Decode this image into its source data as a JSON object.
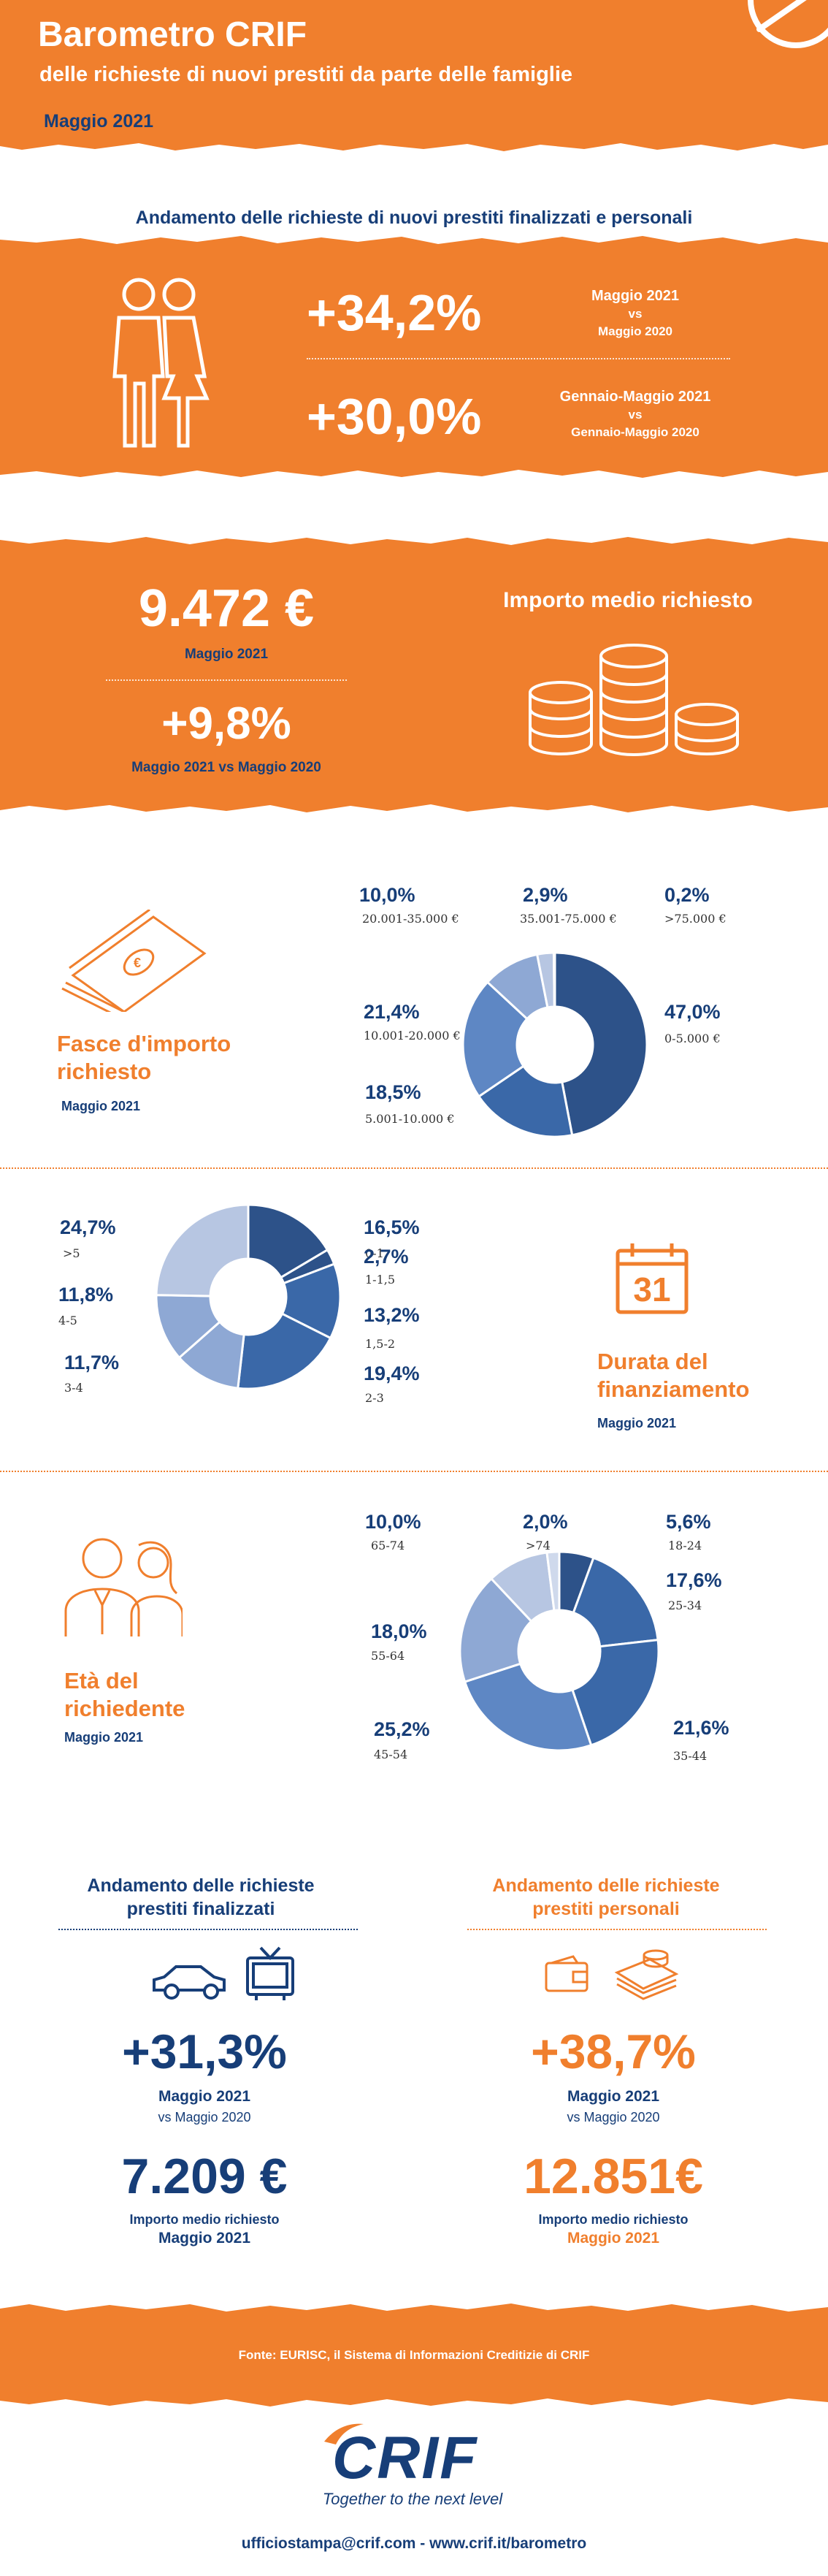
{
  "colors": {
    "orange": "#f07f2d",
    "navy": "#173e78",
    "donut": [
      "#2d5289",
      "#3a68a8",
      "#5e87c4",
      "#8ea8d4",
      "#b7c6e2",
      "#cfd9ec",
      "#e3e9f4"
    ]
  },
  "header": {
    "title": "Barometro CRIF",
    "subtitle": "delle richieste di nuovi prestiti da parte delle famiglie",
    "date": "Maggio 2021"
  },
  "trend": {
    "heading": "Andamento delle richieste di nuovi prestiti finalizzati e personali",
    "stat1": {
      "value": "+34,2%",
      "label_top": "Maggio 2021",
      "label_vs": "vs",
      "label_bottom": "Maggio 2020"
    },
    "stat2": {
      "value": "+30,0%",
      "label_top": "Gennaio-Maggio 2021",
      "label_vs": "vs",
      "label_bottom": "Gennaio-Maggio 2020"
    }
  },
  "amount": {
    "value": "9.472 €",
    "value_label": "Maggio 2021",
    "change": "+9,8%",
    "change_label": "Maggio 2021 vs Maggio 2020",
    "title": "Importo medio richiesto"
  },
  "fasce": {
    "title": "Fasce d'importo richiesto",
    "date": "Maggio 2021",
    "chart_data": {
      "type": "pie",
      "hole": true,
      "slices": [
        {
          "pct": "47,0%",
          "range": "0-5.000 €",
          "value": 47.0
        },
        {
          "pct": "18,5%",
          "range": "5.001-10.000  €",
          "value": 18.5
        },
        {
          "pct": "21,4%",
          "range": "10.001-20.000 €",
          "value": 21.4
        },
        {
          "pct": "10,0%",
          "range": "20.001-35.000 €",
          "value": 10.0
        },
        {
          "pct": "2,9%",
          "range": "35.001-75.000 €",
          "value": 2.9
        },
        {
          "pct": "0,2%",
          "range": ">75.000 €",
          "value": 0.2
        }
      ]
    }
  },
  "durata": {
    "title": "Durata del finanziamento",
    "date": "Maggio 2021",
    "calendar_number": "31",
    "chart_data": {
      "type": "pie",
      "hole": true,
      "slices": [
        {
          "pct": "16,5%",
          "range": "0-1",
          "value": 16.5
        },
        {
          "pct": "2,7%",
          "range": "1-1,5",
          "value": 2.7
        },
        {
          "pct": "13,2%",
          "range": "1,5-2",
          "value": 13.2
        },
        {
          "pct": "19,4%",
          "range": "2-3",
          "value": 19.4
        },
        {
          "pct": "11,7%",
          "range": "3-4",
          "value": 11.7
        },
        {
          "pct": "11,8%",
          "range": "4-5",
          "value": 11.8
        },
        {
          "pct": "24,7%",
          "range": ">5",
          "value": 24.7
        }
      ]
    }
  },
  "eta": {
    "title": "Età del richiedente",
    "date": "Maggio 2021",
    "chart_data": {
      "type": "pie",
      "hole": true,
      "slices": [
        {
          "pct": "5,6%",
          "range": "18-24",
          "value": 5.6
        },
        {
          "pct": "17,6%",
          "range": "25-34",
          "value": 17.6
        },
        {
          "pct": "21,6%",
          "range": "35-44",
          "value": 21.6
        },
        {
          "pct": "25,2%",
          "range": "45-54",
          "value": 25.2
        },
        {
          "pct": "18,0%",
          "range": "55-64",
          "value": 18.0
        },
        {
          "pct": "10,0%",
          "range": "65-74",
          "value": 10.0
        },
        {
          "pct": "2,0%",
          "range": ">74",
          "value": 2.0
        }
      ]
    }
  },
  "finalizzati": {
    "heading": "Andamento delle richieste prestiti finalizzati",
    "change": "+31,3%",
    "date": "Maggio 2021",
    "vs": "vs Maggio 2020",
    "amount": "7.209 €",
    "amount_label": "Importo medio richiesto",
    "amount_date": "Maggio 2021"
  },
  "personali": {
    "heading": "Andamento delle richieste prestiti personali",
    "change": "+38,7%",
    "date": "Maggio 2021",
    "vs": "vs Maggio 2020",
    "amount": "12.851€",
    "amount_label": "Importo medio richiesto",
    "amount_date": "Maggio 2021"
  },
  "footer": {
    "source": "Fonte: EURISC, il Sistema di Informazioni Creditizie di CRIF",
    "logo": "CRIF",
    "tagline": "Together to the next level",
    "contact": "ufficiostampa@crif.com - www.crif.it/barometro"
  }
}
